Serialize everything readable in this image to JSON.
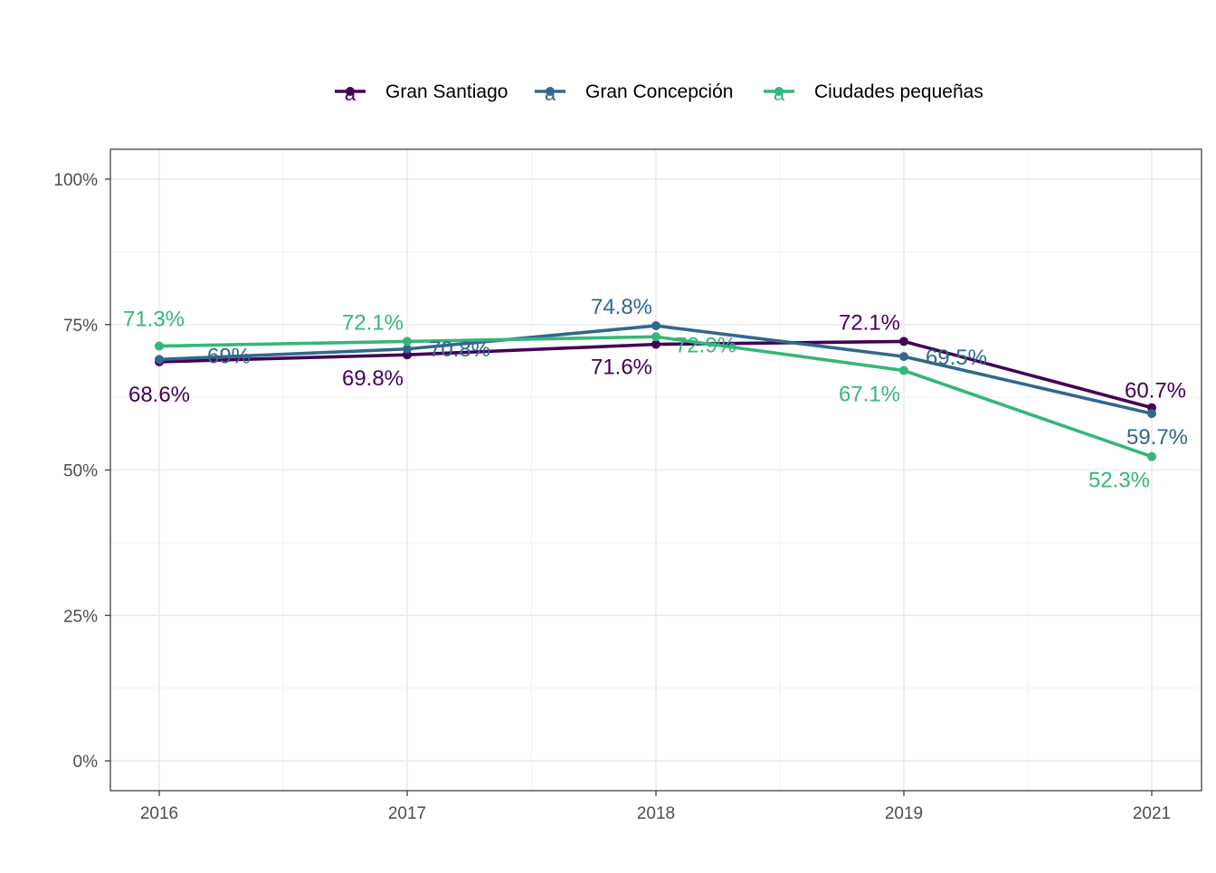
{
  "chart_data": {
    "type": "line",
    "title": "",
    "xlabel": "",
    "ylabel": "",
    "categories": [
      "2016",
      "2017",
      "2018",
      "2019",
      "2021"
    ],
    "ylim": [
      0,
      100
    ],
    "y_ticks": [
      "0%",
      "25%",
      "50%",
      "75%",
      "100%"
    ],
    "legend_position": "top",
    "grid": true,
    "series": [
      {
        "name": "Gran Santiago",
        "color": "#440154",
        "values": [
          68.6,
          69.8,
          71.6,
          72.1,
          60.7
        ],
        "labels": [
          "68.6%",
          "69.8%",
          "71.6%",
          "72.1%",
          "60.7%"
        ]
      },
      {
        "name": "Gran Concepción",
        "color": "#31688e",
        "values": [
          69.0,
          70.8,
          74.8,
          69.5,
          59.7
        ],
        "labels": [
          "69%",
          "70.8%",
          "74.8%",
          "69.5%",
          "59.7%"
        ]
      },
      {
        "name": "Ciudades pequeñas",
        "color": "#35b779",
        "values": [
          71.3,
          72.1,
          72.9,
          67.1,
          52.3
        ],
        "labels": [
          "71.3%",
          "72.1%",
          "72.9%",
          "67.1%",
          "52.3%"
        ]
      }
    ],
    "legend_key_glyph": "a"
  }
}
